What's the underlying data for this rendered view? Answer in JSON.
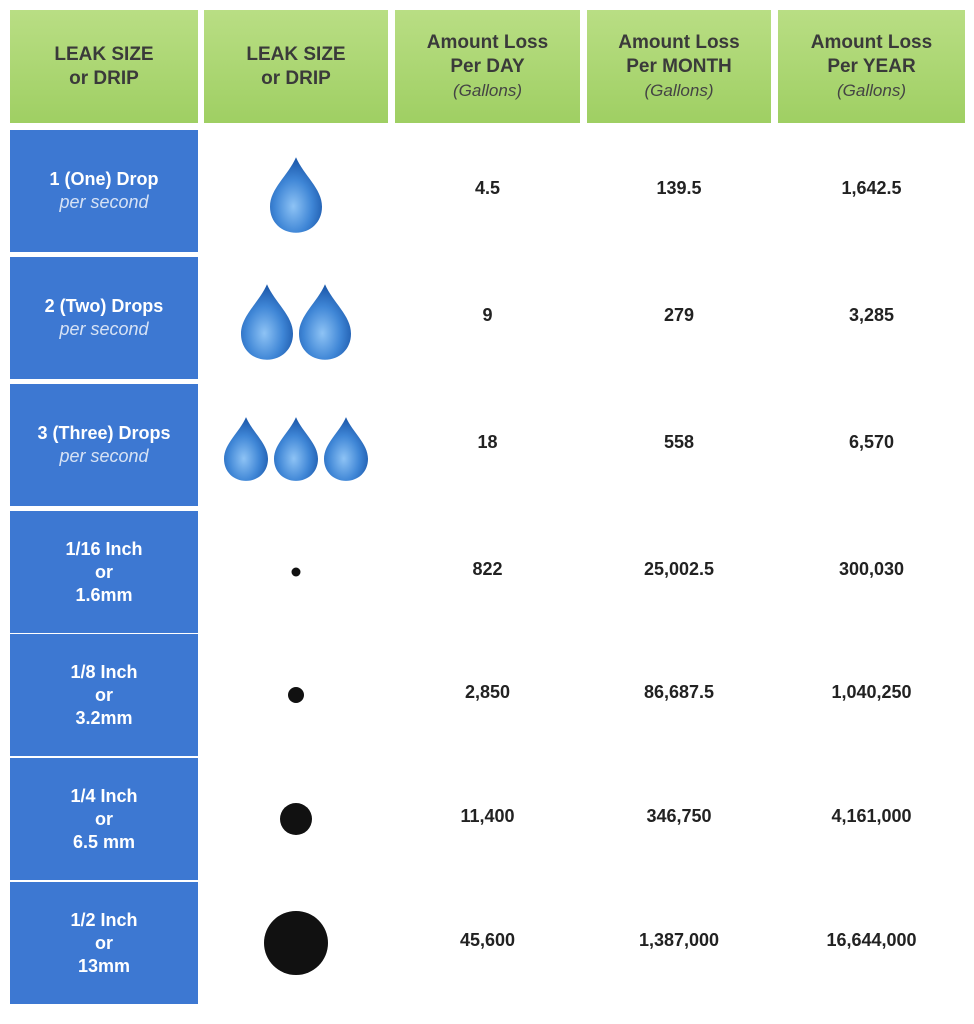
{
  "header": {
    "columns": [
      {
        "lines": [
          "LEAK SIZE",
          "or DRIP"
        ]
      },
      {
        "lines": [
          "LEAK SIZE",
          "or DRIP"
        ]
      },
      {
        "lines": [
          "Amount Loss",
          "Per DAY"
        ],
        "unit": "(Gallons)"
      },
      {
        "lines": [
          "Amount Loss",
          "Per MONTH"
        ],
        "unit": "(Gallons)"
      },
      {
        "lines": [
          "Amount Loss",
          "Per YEAR"
        ],
        "unit": "(Gallons)"
      }
    ]
  },
  "table": {
    "rows": [
      {
        "label": [
          "1 (One) Drop"
        ],
        "note": "per second",
        "values": [
          "4.5",
          "139.5",
          "1,642.5"
        ]
      },
      {
        "label": [
          "2 (Two) Drops"
        ],
        "note": "per second",
        "values": [
          "9",
          "279",
          "3,285"
        ]
      },
      {
        "label": [
          "3 (Three) Drops"
        ],
        "note": "per second",
        "values": [
          "18",
          "558",
          "6,570"
        ]
      },
      {
        "label": [
          "1/16 Inch",
          "or",
          "1.6mm"
        ],
        "values": [
          "822",
          "25,002.5",
          "300,030"
        ]
      },
      {
        "label": [
          "1/8 Inch",
          "or",
          "3.2mm"
        ],
        "values": [
          "2,850",
          "86,687.5",
          "1,040,250"
        ]
      },
      {
        "label": [
          "1/4 Inch",
          "or",
          "6.5 mm"
        ],
        "values": [
          "11,400",
          "346,750",
          "4,161,000"
        ]
      },
      {
        "label": [
          "1/2 Inch",
          "or",
          "13mm"
        ],
        "values": [
          "45,600",
          "1,387,000",
          "16,644,000"
        ]
      }
    ]
  }
}
